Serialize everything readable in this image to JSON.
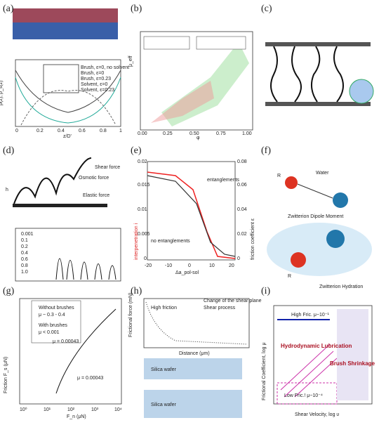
{
  "panels": [
    {
      "label": "(a)",
      "texts": [
        "Brush, ε=0, no solvent",
        "Brush, ε=0",
        "Brush, ε=0.23",
        "Solvent, ε=0",
        "Solvent, ε=0.23",
        "z/D'",
        "ρ(z), ρ_s(z)",
        "0",
        "0.2",
        "0.4",
        "0.6",
        "0.8",
        "1"
      ]
    },
    {
      "label": "(b)",
      "texts": [
        "μ_eff",
        "φ",
        "0.00",
        "0.25",
        "0.50",
        "0.75",
        "1.00"
      ]
    },
    {
      "label": "(c)",
      "texts": []
    },
    {
      "label": "(d)",
      "texts": [
        "Osmotic force",
        "Shear force",
        "Elastic force",
        "h",
        "0.001",
        "0.1",
        "0.2",
        "0.4",
        "0.6",
        "0.8",
        "1.0"
      ]
    },
    {
      "label": "(e)",
      "texts": [
        "entanglements",
        "no entanglements",
        "interpenetration i",
        "friction coefficient ε",
        "Δa_pol-sol",
        "-20",
        "-10",
        "0",
        "10",
        "20",
        "0",
        "0.005",
        "0.01",
        "0.015",
        "0.02",
        "0",
        "0.02",
        "0.04",
        "0.06",
        "0.08"
      ]
    },
    {
      "label": "(f)",
      "texts": [
        "Water",
        "R",
        "Zwitterion Dipole Moment",
        "R",
        "Zwitterion Hydration"
      ]
    },
    {
      "label": "(g)",
      "texts": [
        "Without brushes",
        "μ ~ 0.3 - 0.4",
        "With brushes",
        "μ < 0.001",
        "μ = 0.00043",
        "μ = 0.00043",
        "Friction F_s (μN)",
        "F_n (μN)",
        "10⁰",
        "10¹",
        "10²",
        "10³",
        "10⁴"
      ]
    },
    {
      "label": "(h)",
      "texts": [
        "High friction",
        "Shear process",
        "Change of the shear plane",
        "Silica wafer",
        "Silica wafer",
        "Distance (μm)",
        "Frictional force (mN)"
      ]
    },
    {
      "label": "(i)",
      "texts": [
        "High Fric. μ~10⁻¹",
        "Hydrodynamic Lubrication",
        "Brush Shrinkage",
        "Low Fric.! μ~10⁻⁴",
        "Shear Velocity, log υ",
        "Frictional Coefficient, log μ"
      ]
    }
  ]
}
